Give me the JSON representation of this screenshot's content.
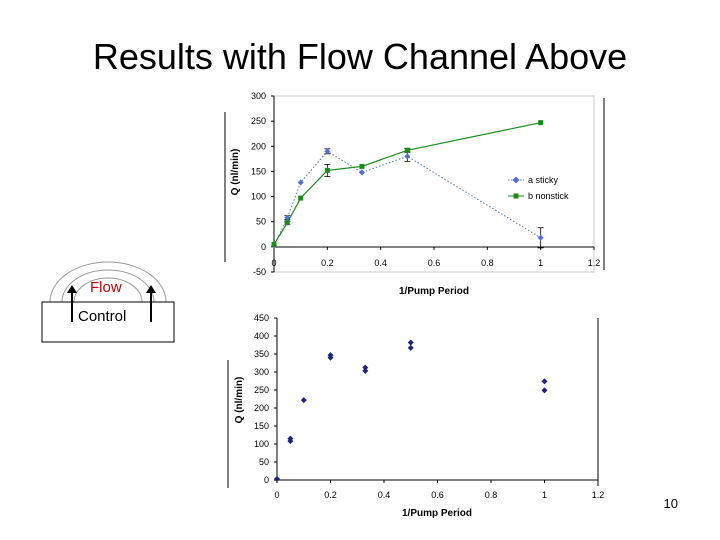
{
  "slide": {
    "title": "Results with Flow Channel Above",
    "page_number": "10"
  },
  "diagram": {
    "flow_label": "Flow",
    "control_label": "Control",
    "flow_color": "#c00000"
  },
  "chart_data": [
    {
      "type": "scatter",
      "title": "",
      "xlabel": "1/Pump Period",
      "ylabel": "Q (nl/min)",
      "xlim": [
        0,
        1.2
      ],
      "ylim": [
        -50,
        300
      ],
      "xticks": [
        "0",
        "0.2",
        "0.4",
        "0.6",
        "0.8",
        "1",
        "1.2"
      ],
      "yticks": [
        "-50",
        "0",
        "50",
        "100",
        "150",
        "200",
        "250",
        "300"
      ],
      "legend_position": "right",
      "grid": false,
      "series": [
        {
          "name": "a sticky",
          "color": "#4f6fd6",
          "style": "dotted",
          "x": [
            0,
            0.05,
            0.1,
            0.2,
            0.33,
            0.5,
            1
          ],
          "y": [
            3,
            58,
            128,
            190,
            148,
            180,
            18
          ],
          "err": [
            0,
            4,
            0,
            5,
            0,
            10,
            20
          ]
        },
        {
          "name": "b nonstick",
          "color": "#1a8c1a",
          "style": "solid",
          "x": [
            0,
            0.05,
            0.1,
            0.2,
            0.33,
            0.5,
            1
          ],
          "y": [
            5,
            48,
            97,
            152,
            160,
            192,
            247
          ],
          "err": [
            0,
            3,
            0,
            12,
            0,
            4,
            0
          ]
        }
      ]
    },
    {
      "type": "scatter",
      "title": "",
      "xlabel": "1/Pump Period",
      "ylabel": "Q (nl/min)",
      "xlim": [
        0,
        1.2
      ],
      "ylim": [
        0,
        450
      ],
      "xticks": [
        "0",
        "0.2",
        "0.4",
        "0.6",
        "0.8",
        "1",
        "1.2"
      ],
      "yticks": [
        "0",
        "50",
        "100",
        "150",
        "200",
        "250",
        "300",
        "350",
        "400",
        "450"
      ],
      "grid": false,
      "series": [
        {
          "color": "#1a237e",
          "x": [
            0,
            0.05,
            0.05,
            0.1,
            0.2,
            0.2,
            0.33,
            0.33,
            0.5,
            0.5,
            1,
            1
          ],
          "y": [
            3,
            108,
            115,
            222,
            340,
            347,
            303,
            312,
            367,
            382,
            249,
            274
          ]
        }
      ]
    }
  ]
}
